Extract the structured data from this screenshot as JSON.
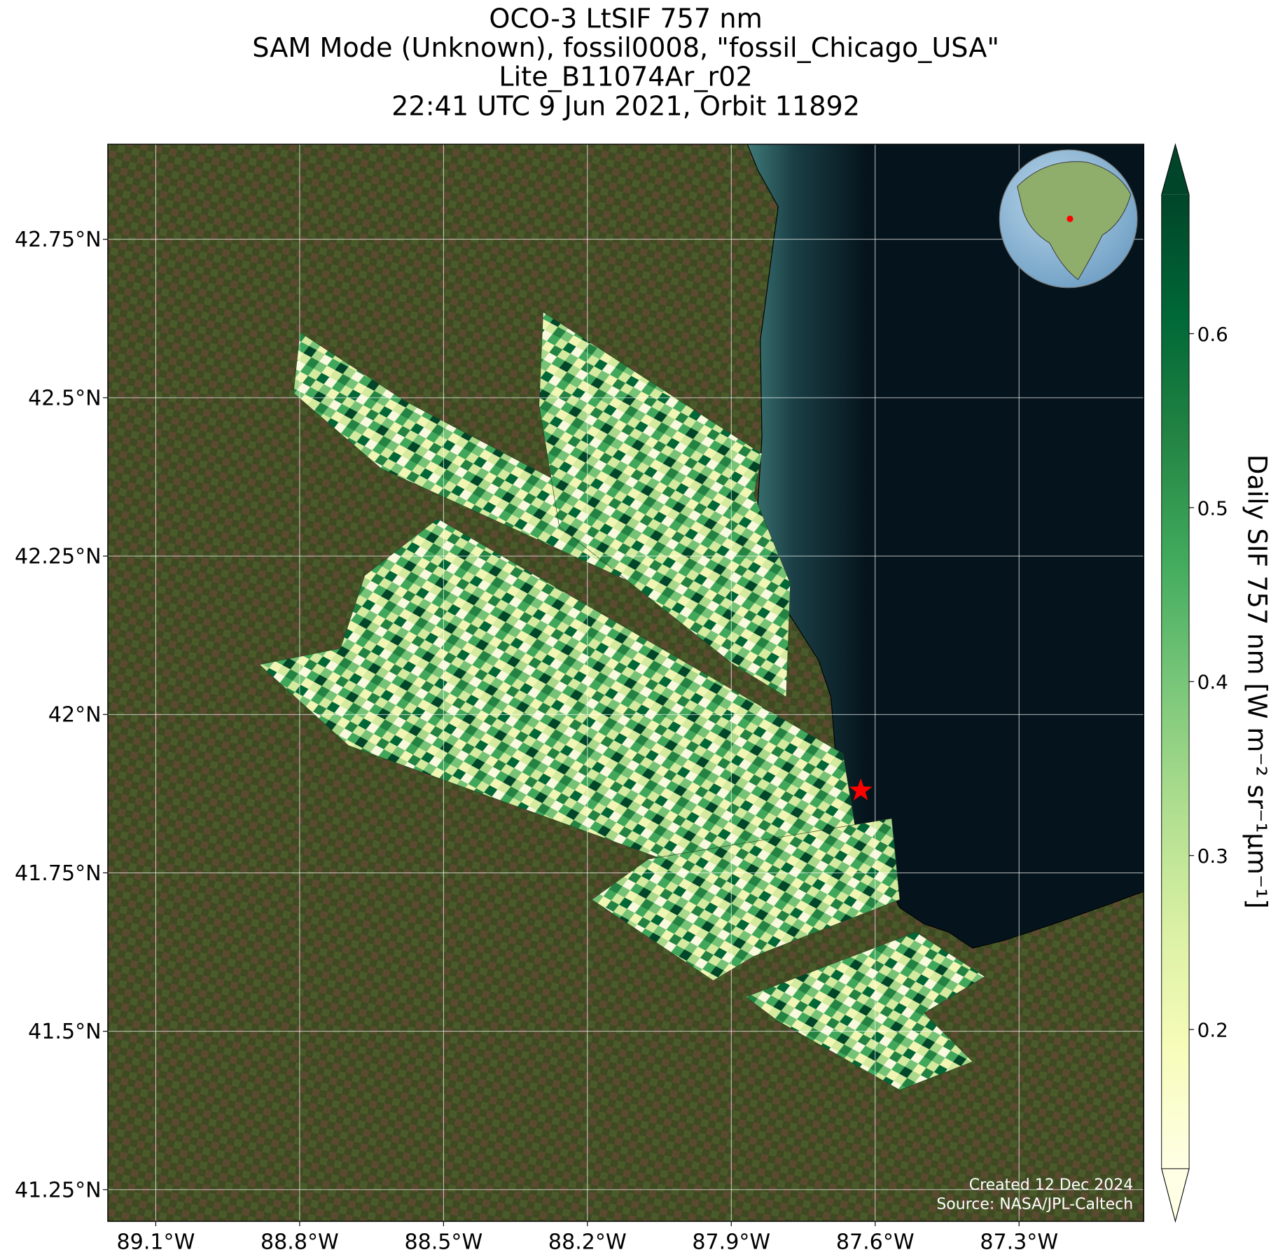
{
  "title": [
    "OCO-3 LtSIF 757 nm",
    "SAM Mode (Unknown), fossil0008, \"fossil_Chicago_USA\"",
    "Lite_B11074Ar_r02",
    "22:41 UTC 9 Jun 2021, Orbit 11892"
  ],
  "map": {
    "lon_range": [
      -89.2,
      -87.04
    ],
    "lat_range": [
      41.2,
      42.9
    ],
    "lon_ticks": [
      {
        "value": -89.1,
        "label": "89.1°W"
      },
      {
        "value": -88.8,
        "label": "88.8°W"
      },
      {
        "value": -88.5,
        "label": "88.5°W"
      },
      {
        "value": -88.2,
        "label": "88.2°W"
      },
      {
        "value": -87.9,
        "label": "87.9°W"
      },
      {
        "value": -87.6,
        "label": "87.6°W"
      },
      {
        "value": -87.3,
        "label": "87.3°W"
      }
    ],
    "lat_ticks": [
      {
        "value": 42.75,
        "label": "42.75°N"
      },
      {
        "value": 42.5,
        "label": "42.5°N"
      },
      {
        "value": 42.25,
        "label": "42.25°N"
      },
      {
        "value": 42,
        "label": "42°N"
      },
      {
        "value": 41.75,
        "label": "41.75°N"
      },
      {
        "value": 41.5,
        "label": "41.5°N"
      },
      {
        "value": 41.25,
        "label": "41.25°N"
      }
    ],
    "target": {
      "lon": -87.63,
      "lat": 41.88,
      "color": "#ff0000"
    }
  },
  "colorbar": {
    "label": "Daily SIF 757 nm [W m⁻² sr⁻¹μm⁻¹]",
    "range": [
      0.12,
      0.68
    ],
    "ticks": [
      0.2,
      0.3,
      0.4,
      0.5,
      0.6
    ],
    "colors": [
      "#ffffe5",
      "#f7fcb9",
      "#d9f0a3",
      "#addd8e",
      "#78c679",
      "#41ab5d",
      "#238443",
      "#006837",
      "#004529"
    ]
  },
  "footer": [
    "Created 12 Dec 2024",
    "Source: NASA/JPL-Caltech"
  ]
}
